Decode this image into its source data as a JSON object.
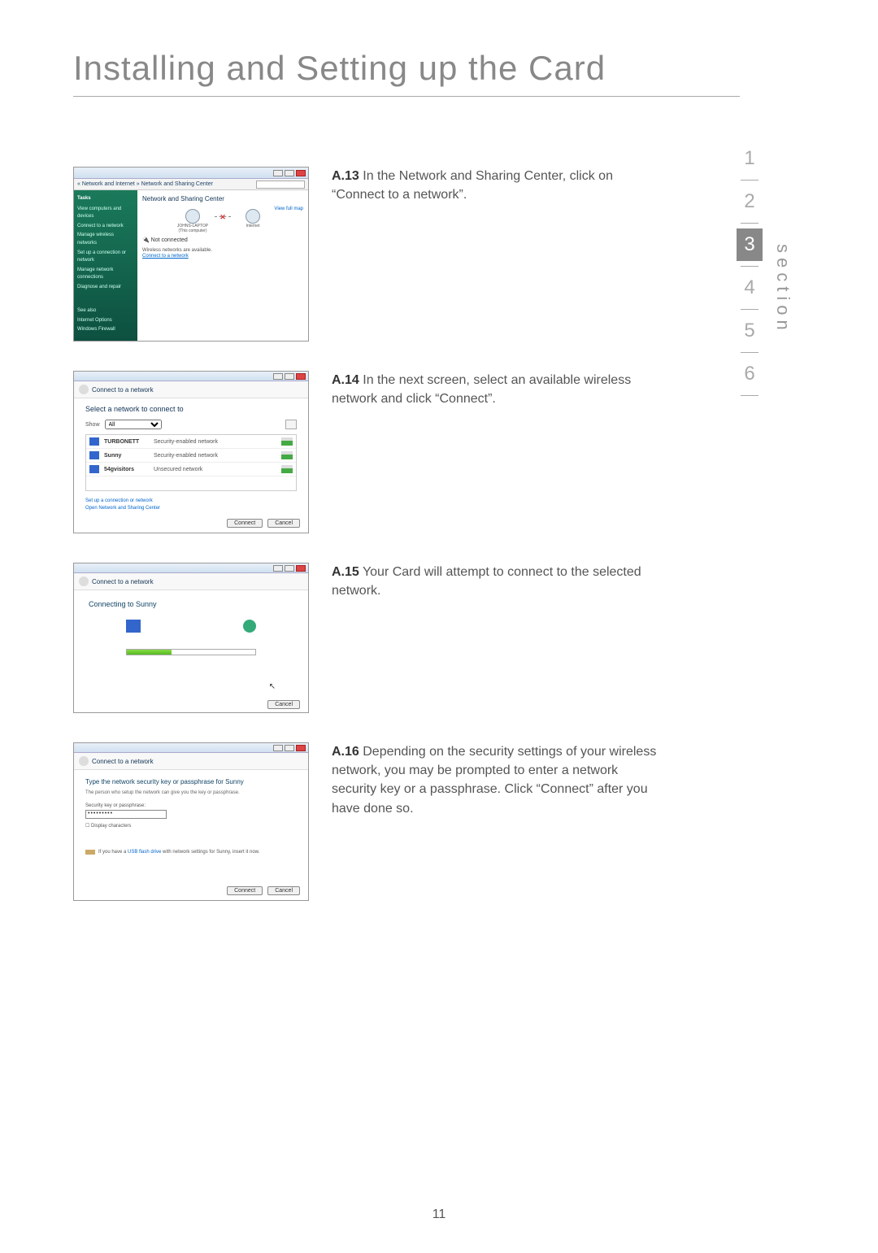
{
  "page": {
    "title": "Installing and Setting up the Card",
    "number": "11"
  },
  "nav": {
    "label": "section",
    "items": [
      "1",
      "2",
      "3",
      "4",
      "5",
      "6"
    ],
    "active_index": 2
  },
  "steps": [
    {
      "num": "A.13",
      "text": " In the Network and Sharing Center, click on “Connect to a network”.",
      "shot": {
        "breadcrumb": "« Network and Internet » Network and Sharing Center",
        "heading": "Network and Sharing Center",
        "tasks_header": "Tasks",
        "tasks": [
          "View computers and devices",
          "Connect to a network",
          "Manage wireless networks",
          "Set up a connection or network",
          "Manage network connections",
          "Diagnose and repair"
        ],
        "viewmap": "View full map",
        "node1": "JOHNS-LAPTOP",
        "node1_sub": "(This computer)",
        "node2": "Internet",
        "not_connected": "Not connected",
        "avail": "Wireless networks are available.",
        "connlink": "Connect to a network",
        "seealso": [
          "See also",
          "Internet Options",
          "Windows Firewall"
        ]
      }
    },
    {
      "num": "A.14",
      "text": " In the next screen, select an available wireless network and click “Connect”.",
      "shot": {
        "title": "Connect to a network",
        "prompt": "Select a network to connect to",
        "show_label": "Show",
        "show_value": "All",
        "networks": [
          {
            "name": "TURBONETT",
            "sec": "Security-enabled network"
          },
          {
            "name": "Sunny",
            "sec": "Security-enabled network"
          },
          {
            "name": "54gvisitors",
            "sec": "Unsecured network"
          }
        ],
        "link1": "Set up a connection or network",
        "link2": "Open Network and Sharing Center",
        "connect": "Connect",
        "cancel": "Cancel"
      }
    },
    {
      "num": "A.15",
      "text": " Your Card will attempt to connect to the selected network.",
      "shot": {
        "title": "Connect to a network",
        "msg": "Connecting to Sunny",
        "cancel": "Cancel"
      }
    },
    {
      "num": "A.16",
      "text": " Depending on the security settings of your wireless network, you may be prompted to enter a network security key or a passphrase. Click “Connect” after you have done so.",
      "shot": {
        "title": "Connect to a network",
        "prompt": "Type the network security key or passphrase for Sunny",
        "sub": "The person who setup the network can give you the key or passphrase.",
        "field_label": "Security key or passphrase:",
        "field_value": "•••••••••",
        "display_chars": "Display characters",
        "usb_pre": "If you have a ",
        "usb_link": "USB flash drive",
        "usb_post": " with network settings for Sunny, insert it now.",
        "connect": "Connect",
        "cancel": "Cancel"
      }
    }
  ]
}
